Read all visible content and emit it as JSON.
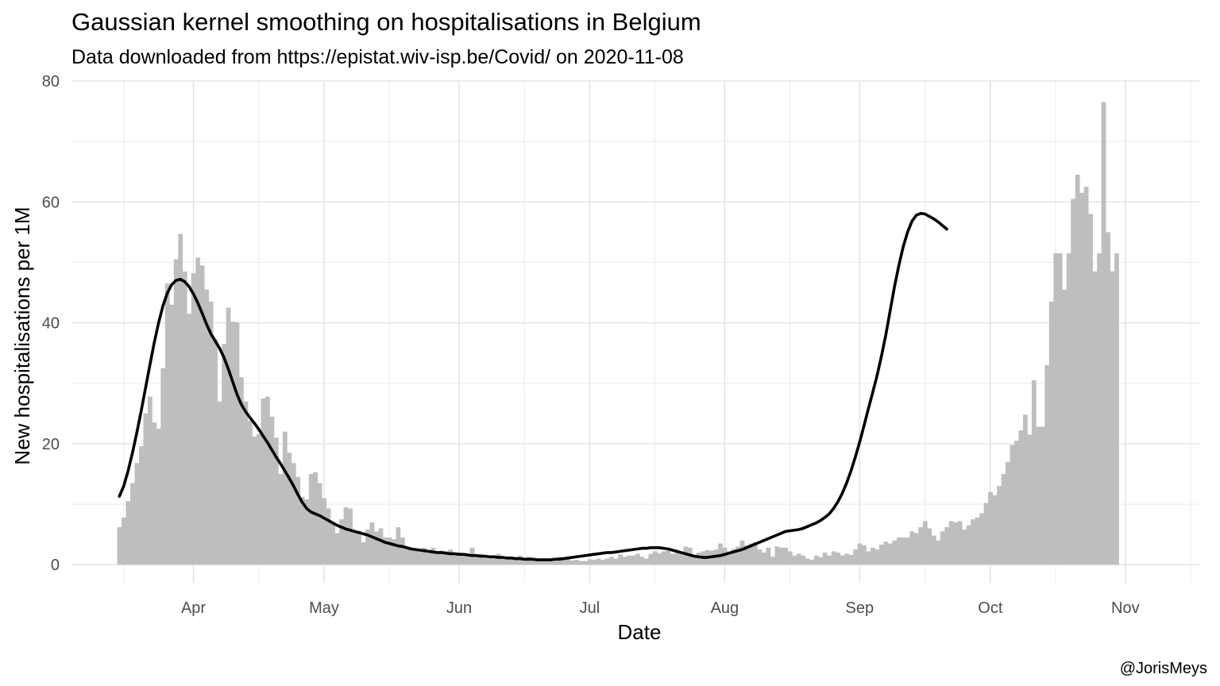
{
  "chart_data": {
    "type": "bar",
    "title": "Gaussian kernel smoothing on hospitalisations in Belgium",
    "subtitle": "Data downloaded from https://epistat.wiv-isp.be/Covid/ on 2020-11-08",
    "xlabel": "Date",
    "ylabel": "New hospitalisations per 1M",
    "caption": "@JorisMeys",
    "xlim": [
      "2020-03-04",
      "2020-11-18"
    ],
    "ylim": [
      -3,
      80
    ],
    "x_ticks": [
      {
        "date": "2020-04-01",
        "label": "Apr"
      },
      {
        "date": "2020-05-01",
        "label": "May"
      },
      {
        "date": "2020-06-01",
        "label": "Jun"
      },
      {
        "date": "2020-07-01",
        "label": "Jul"
      },
      {
        "date": "2020-08-01",
        "label": "Aug"
      },
      {
        "date": "2020-09-01",
        "label": "Sep"
      },
      {
        "date": "2020-10-01",
        "label": "Oct"
      },
      {
        "date": "2020-11-01",
        "label": "Nov"
      }
    ],
    "x_minor_ticks": [
      "2020-03-16",
      "2020-04-16",
      "2020-05-16",
      "2020-06-16",
      "2020-07-16",
      "2020-08-16",
      "2020-09-16",
      "2020-10-16",
      "2020-11-16"
    ],
    "y_ticks": [
      0,
      20,
      40,
      60,
      80
    ],
    "y_minor_ticks": [
      10,
      30,
      50,
      70
    ],
    "grid": true,
    "bar_color": "#bebebe",
    "line_color": "#000000",
    "start_date": "2020-03-15",
    "series": [
      {
        "type": "bar",
        "values": [
          6.2,
          7.8,
          10.5,
          13.5,
          16.8,
          19.6,
          25.0,
          27.8,
          23.5,
          22.5,
          32.5,
          46.5,
          43.0,
          50.5,
          54.7,
          48.5,
          41.5,
          48.2,
          50.8,
          49.5,
          45.5,
          43.5,
          37.3,
          27.0,
          36.5,
          42.5,
          40.2,
          40.1,
          31.0,
          27.0,
          23.8,
          21.2,
          21.6,
          27.5,
          27.8,
          24.5,
          21.0,
          15.0,
          22.0,
          18.5,
          16.8,
          14.5,
          11.2,
          10.8,
          15.0,
          15.3,
          13.5,
          11.0,
          9.3,
          7.0,
          5.2,
          7.5,
          9.5,
          9.3,
          5.5,
          5.6,
          3.7,
          5.8,
          7.0,
          5.5,
          6.0,
          4.5,
          4.5,
          4.2,
          6.2,
          4.5,
          3.0,
          2.8,
          2.5,
          2.5,
          2.8,
          2.2,
          2.8,
          2.0,
          2.3,
          2.2,
          2.5,
          1.8,
          2.0,
          1.5,
          1.6,
          2.8,
          1.5,
          1.8,
          1.2,
          1.5,
          1.3,
          1.8,
          1.2,
          1.0,
          1.2,
          1.0,
          1.5,
          1.0,
          1.3,
          1.0,
          0.8,
          1.0,
          0.8,
          0.8,
          0.9,
          1.3,
          0.8,
          1.0,
          0.7,
          0.8,
          0.6,
          0.6,
          0.9,
          0.8,
          1.0,
          0.8,
          1.0,
          1.3,
          1.0,
          1.7,
          1.3,
          1.5,
          1.5,
          1.8,
          1.3,
          1.0,
          1.8,
          2.2,
          1.9,
          2.2,
          2.3,
          1.8,
          2.2,
          1.9,
          3.0,
          2.8,
          1.3,
          2.0,
          2.2,
          2.4,
          2.3,
          2.5,
          3.5,
          2.8,
          2.2,
          2.6,
          3.0,
          4.0,
          3.2,
          3.5,
          3.7,
          2.5,
          2.0,
          2.8,
          1.3,
          3.0,
          2.8,
          2.8,
          2.2,
          1.5,
          1.8,
          1.5,
          1.0,
          0.8,
          1.5,
          1.2,
          2.0,
          1.5,
          2.2,
          2.0,
          1.5,
          1.8,
          1.6,
          2.5,
          3.5,
          3.2,
          2.2,
          2.8,
          2.5,
          3.3,
          3.8,
          3.5,
          4.0,
          4.5,
          4.5,
          4.5,
          5.5,
          5.2,
          6.2,
          7.2,
          6.0,
          4.8,
          4.0,
          5.5,
          6.2,
          7.2,
          7.0,
          7.2,
          5.8,
          6.5,
          7.5,
          7.8,
          8.5,
          10.2,
          12.0,
          11.5,
          13.0,
          15.0,
          17.0,
          19.8,
          20.5,
          22.2,
          24.8,
          21.5,
          30.5,
          22.8,
          22.8,
          33.0,
          43.5,
          51.5,
          51.5,
          45.5,
          51.5,
          60.5,
          64.5,
          61.5,
          62.5,
          58.0,
          48.5,
          51.5,
          76.5,
          55.0,
          48.5,
          51.5
        ]
      },
      {
        "type": "line",
        "values": [
          11.3,
          13.0,
          15.5,
          18.5,
          21.8,
          25.4,
          29.2,
          33.0,
          36.7,
          40.0,
          42.8,
          44.9,
          46.3,
          47.0,
          47.2,
          46.8,
          46.0,
          44.8,
          43.3,
          41.6,
          39.8,
          38.2,
          37.0,
          35.8,
          34.3,
          32.4,
          30.3,
          28.2,
          26.5,
          25.3,
          24.3,
          23.4,
          22.4,
          21.3,
          20.2,
          19.0,
          17.8,
          16.7,
          15.5,
          14.3,
          13.0,
          11.6,
          10.3,
          9.3,
          8.7,
          8.4,
          8.1,
          7.7,
          7.3,
          6.9,
          6.5,
          6.2,
          5.9,
          5.7,
          5.5,
          5.3,
          5.1,
          4.9,
          4.6,
          4.3,
          4.0,
          3.7,
          3.5,
          3.3,
          3.1,
          3.0,
          2.8,
          2.6,
          2.5,
          2.4,
          2.3,
          2.2,
          2.1,
          2.0,
          2.0,
          1.9,
          1.8,
          1.8,
          1.7,
          1.7,
          1.6,
          1.5,
          1.5,
          1.4,
          1.4,
          1.3,
          1.3,
          1.2,
          1.2,
          1.1,
          1.1,
          1.0,
          1.0,
          0.9,
          0.9,
          0.9,
          0.8,
          0.8,
          0.8,
          0.8,
          0.9,
          0.9,
          1.0,
          1.1,
          1.2,
          1.3,
          1.4,
          1.5,
          1.6,
          1.7,
          1.8,
          1.9,
          2.0,
          2.0,
          2.1,
          2.2,
          2.3,
          2.4,
          2.5,
          2.6,
          2.7,
          2.7,
          2.8,
          2.8,
          2.8,
          2.7,
          2.6,
          2.4,
          2.2,
          2.0,
          1.8,
          1.6,
          1.4,
          1.3,
          1.2,
          1.2,
          1.3,
          1.4,
          1.5,
          1.7,
          1.9,
          2.1,
          2.3,
          2.5,
          2.8,
          3.1,
          3.4,
          3.7,
          4.0,
          4.3,
          4.6,
          4.9,
          5.2,
          5.5,
          5.6,
          5.7,
          5.8,
          6.0,
          6.3,
          6.6,
          6.9,
          7.3,
          7.8,
          8.4,
          9.3,
          10.4,
          11.8,
          13.5,
          15.5,
          17.8,
          20.3,
          23.0,
          25.8,
          28.5,
          31.3,
          34.5,
          38.0,
          42.0,
          46.0,
          49.5,
          52.6,
          55.0,
          56.8,
          57.8,
          58.1,
          58.0,
          57.6,
          57.2,
          56.7,
          56.1,
          55.5
        ]
      }
    ]
  }
}
